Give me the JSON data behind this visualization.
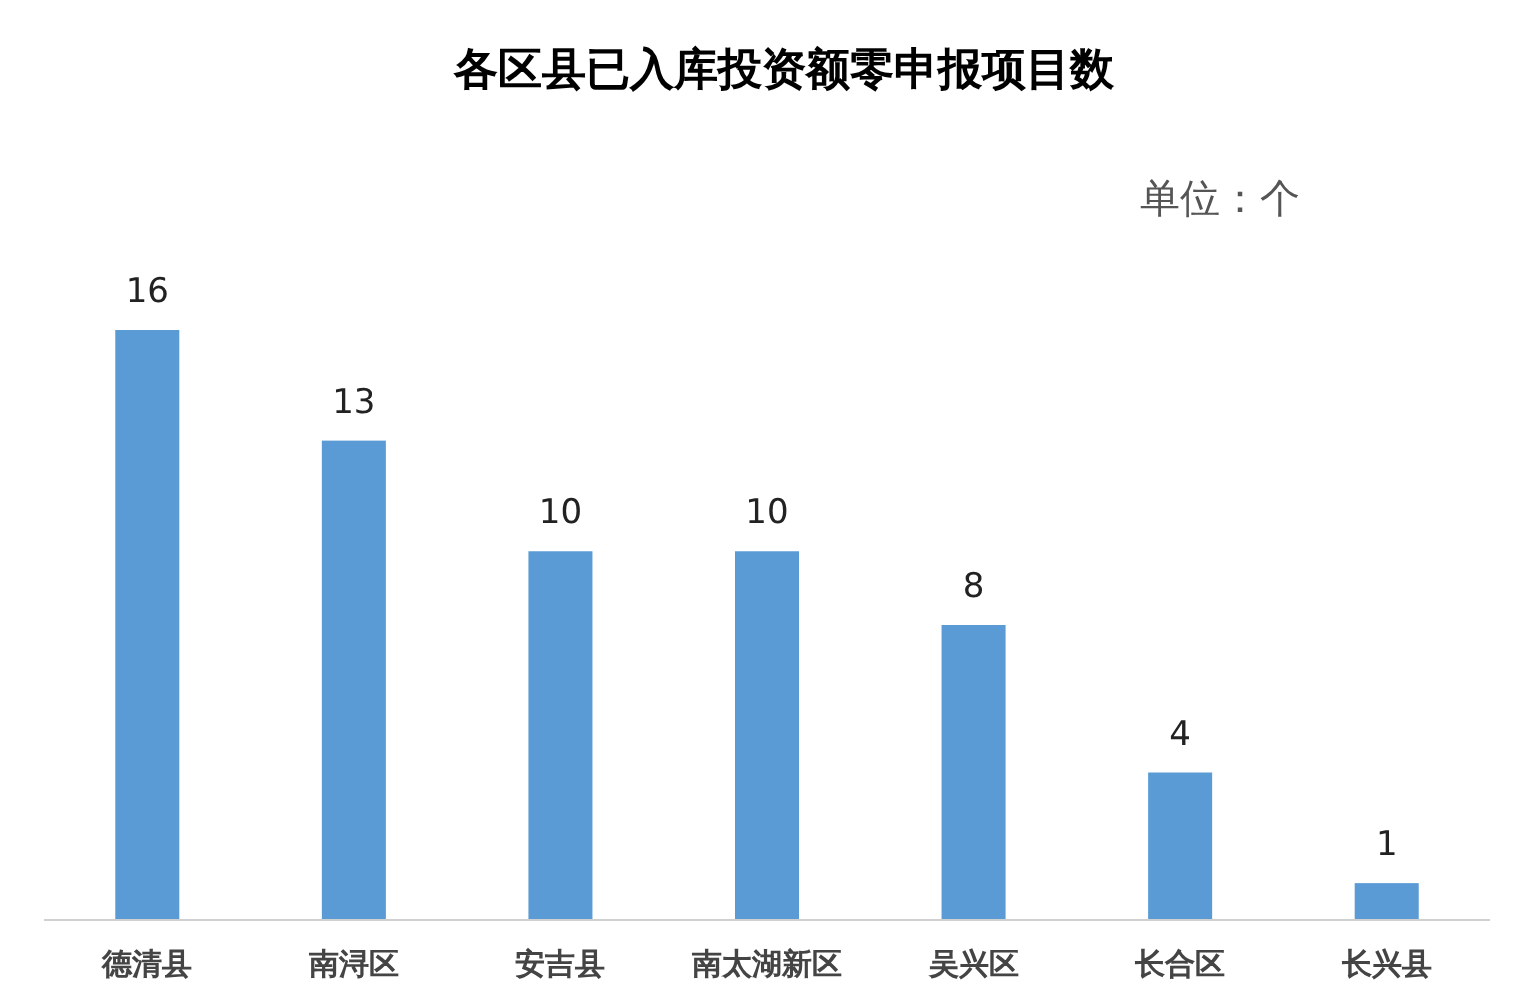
{
  "chart_data": {
    "type": "bar",
    "title": "各区县已入库投资额零申报项目数",
    "annotations": [
      "单位：个"
    ],
    "categories": [
      "德清县",
      "南浔区",
      "安吉县",
      "南太湖新区",
      "吴兴区",
      "长合区",
      "长兴县"
    ],
    "values": [
      16,
      13,
      10,
      10,
      8,
      4,
      1
    ],
    "color": "#5b9bd5",
    "data_labels": true
  }
}
